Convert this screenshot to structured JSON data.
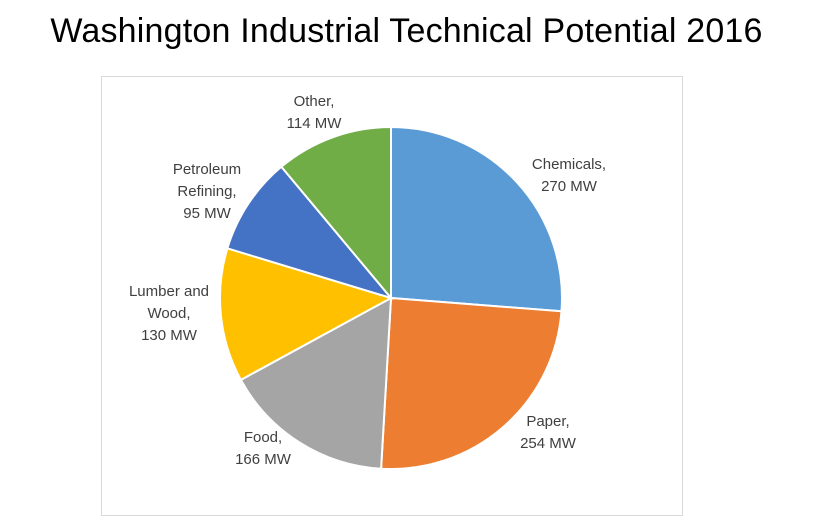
{
  "page": {
    "title": "Washington Industrial Technical Potential 2016"
  },
  "chart_data": {
    "type": "pie",
    "title": "",
    "unit": "MW",
    "start_angle_deg": 0,
    "direction": "clockwise",
    "legend": "none",
    "slices": [
      {
        "category": "Chemicals",
        "value": 270,
        "color": "#5b9bd5",
        "label_lines": [
          "Chemicals,",
          "270 MW"
        ]
      },
      {
        "category": "Paper",
        "value": 254,
        "color": "#ed7d31",
        "label_lines": [
          "Paper,",
          "254 MW"
        ]
      },
      {
        "category": "Food",
        "value": 166,
        "color": "#a5a5a5",
        "label_lines": [
          "Food,",
          "166 MW"
        ]
      },
      {
        "category": "Lumber and Wood",
        "value": 130,
        "color": "#ffc000",
        "label_lines": [
          "Lumber and",
          "Wood,",
          "130 MW"
        ]
      },
      {
        "category": "Petroleum Refining",
        "value": 95,
        "color": "#4472c4",
        "label_lines": [
          "Petroleum",
          "Refining,",
          "95 MW"
        ]
      },
      {
        "category": "Other",
        "value": 114,
        "color": "#70ad47",
        "label_lines": [
          "Other,",
          "114 MW"
        ]
      }
    ]
  }
}
